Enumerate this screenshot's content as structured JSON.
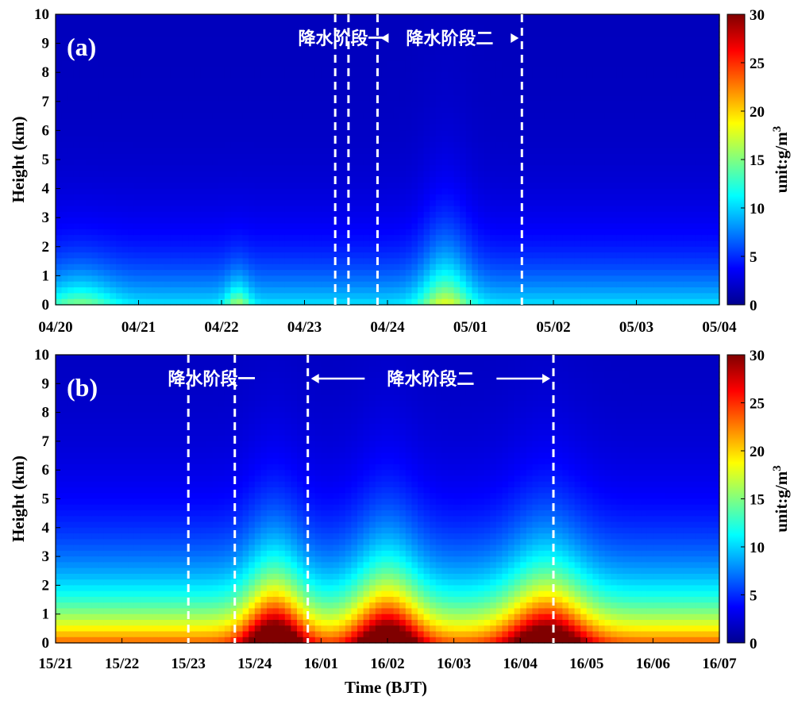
{
  "colormap": [
    "#00008f",
    "#0000ff",
    "#0080ff",
    "#00ffff",
    "#80ff80",
    "#ffff00",
    "#ff8000",
    "#ff0000",
    "#800000"
  ],
  "chart_data": [
    {
      "type": "heatmap",
      "panel_label": "(a)",
      "ylabel": "Height (km)",
      "xlabel": "",
      "ylim": [
        0,
        10
      ],
      "y_ticks": [
        "0",
        "1",
        "2",
        "3",
        "4",
        "5",
        "6",
        "7",
        "8",
        "9",
        "10"
      ],
      "x_ticks": [
        "04/20",
        "04/21",
        "04/22",
        "04/23",
        "04/24",
        "05/01",
        "05/02",
        "05/03",
        "05/04"
      ],
      "colorbar": {
        "label": "unit:g/m",
        "label_sup": "3",
        "range": [
          0,
          30
        ],
        "ticks": [
          "0",
          "5",
          "10",
          "15",
          "20",
          "25",
          "30"
        ]
      },
      "stage_markers": [
        {
          "label": "降水阶段一",
          "start": 3.37,
          "end": 3.53,
          "arrows": false
        },
        {
          "label": "降水阶段二",
          "start": 3.88,
          "end": 5.62,
          "arrows": true
        }
      ],
      "surface_value": 9,
      "scale_height_km": 1.8,
      "baseline": 1.5,
      "bursts": [
        {
          "center": 4.7,
          "width": 0.3,
          "value": 13,
          "height_km": 2.2
        },
        {
          "center": 2.2,
          "width": 0.15,
          "value": 10,
          "height_km": 0.8
        },
        {
          "center": 0.3,
          "width": 0.4,
          "value": 8,
          "height_km": 1.0
        }
      ]
    },
    {
      "type": "heatmap",
      "panel_label": "(b)",
      "ylabel": "Height (km)",
      "xlabel": "Time (BJT)",
      "ylim": [
        0,
        10
      ],
      "y_ticks": [
        "0",
        "1",
        "2",
        "3",
        "4",
        "5",
        "6",
        "7",
        "8",
        "9",
        "10"
      ],
      "x_ticks": [
        "15/21",
        "15/22",
        "15/23",
        "15/24",
        "16/01",
        "16/02",
        "16/03",
        "16/04",
        "16/05",
        "16/06",
        "16/07"
      ],
      "colorbar": {
        "label": "unit:g/m",
        "label_sup": "3",
        "range": [
          0,
          30
        ],
        "ticks": [
          "0",
          "5",
          "10",
          "15",
          "20",
          "25",
          "30"
        ]
      },
      "stage_markers": [
        {
          "label": "降水阶段一",
          "start": 2.0,
          "end": 2.7,
          "arrows": false
        },
        {
          "label": "降水阶段二",
          "start": 3.8,
          "end": 7.5,
          "arrows": true
        }
      ],
      "surface_value": 22,
      "scale_height_km": 2.2,
      "baseline": 1.5,
      "bursts": [
        {
          "center": 3.3,
          "width": 0.45,
          "value": 27,
          "height_km": 2.3
        },
        {
          "center": 5.0,
          "width": 0.5,
          "value": 25,
          "height_km": 2.4
        },
        {
          "center": 7.4,
          "width": 0.6,
          "value": 24,
          "height_km": 2.4
        }
      ]
    }
  ]
}
